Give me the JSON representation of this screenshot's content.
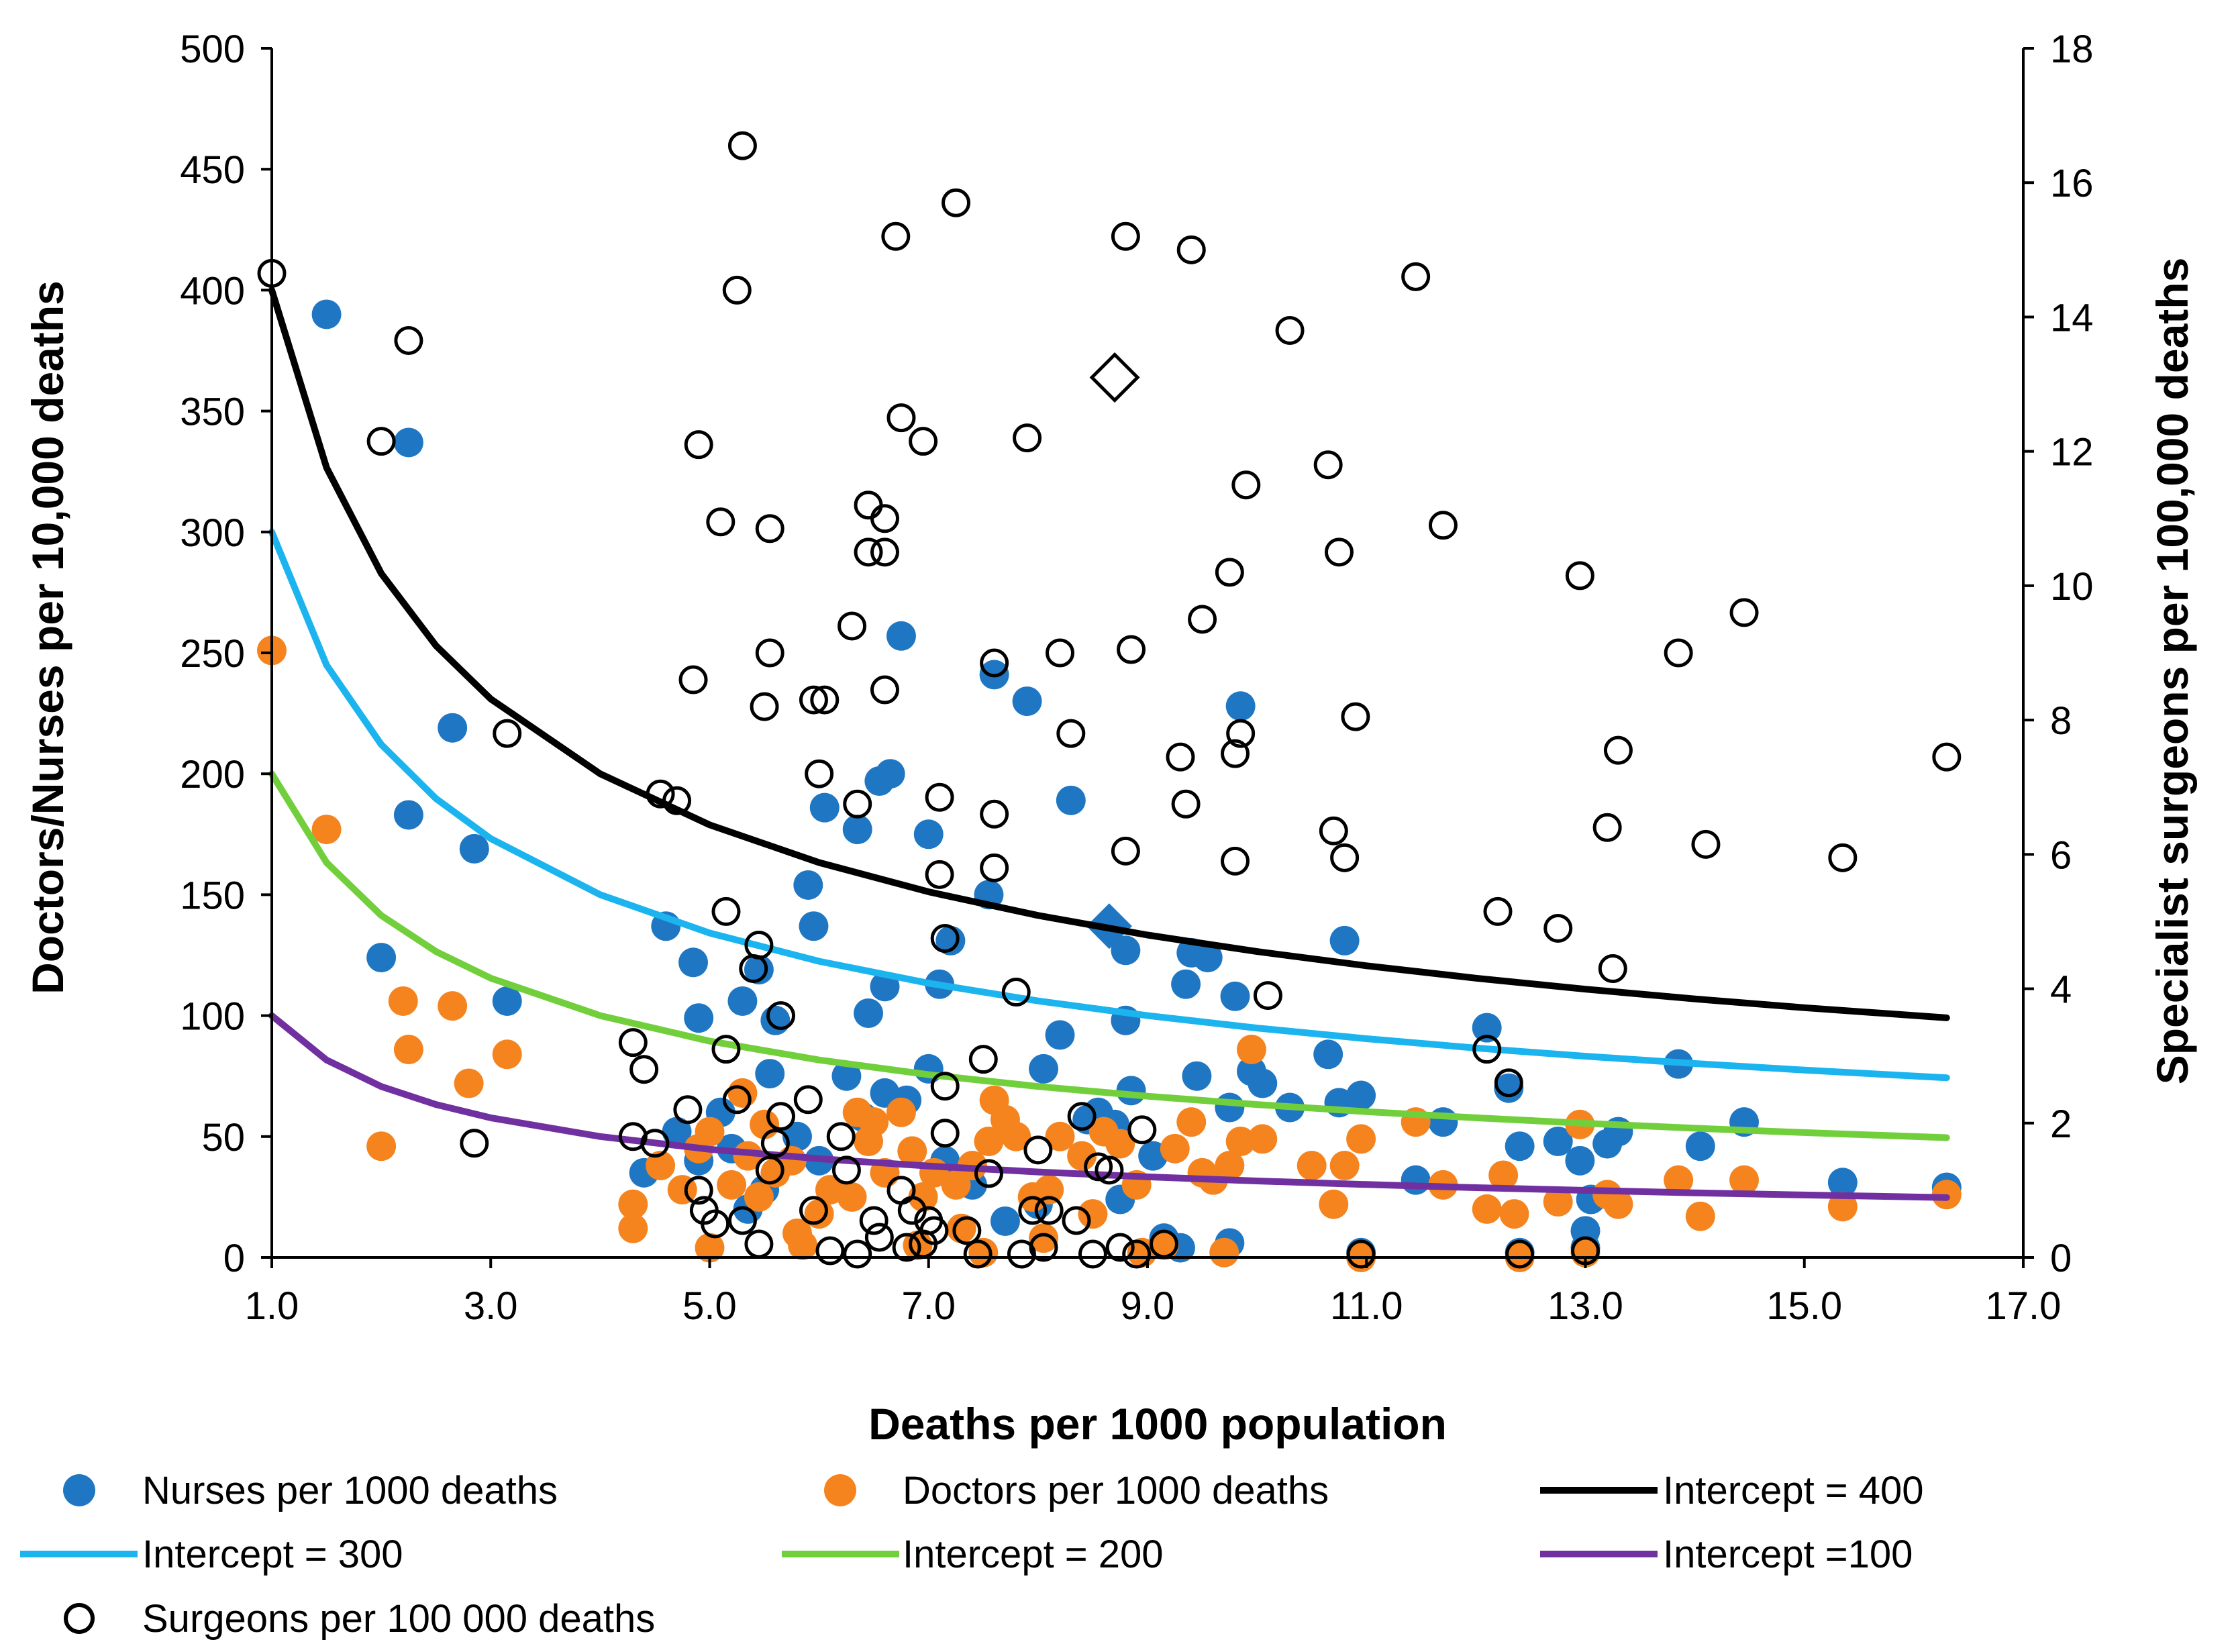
{
  "chart_data": {
    "type": "scatter",
    "xlabel": "Deaths per 1000 population",
    "ylabel": "Doctors/Nurses per 10,000 deaths",
    "y2label": "Specialist surgeons per 100,000 deaths",
    "xlim": [
      1.0,
      17.0
    ],
    "ylim": [
      0,
      500
    ],
    "y2lim": [
      0,
      18
    ],
    "x_ticks": [
      "1.0",
      "3.0",
      "5.0",
      "7.0",
      "9.0",
      "11.0",
      "13.0",
      "15.0",
      "17.0"
    ],
    "y_ticks": [
      "0",
      "50",
      "100",
      "150",
      "200",
      "250",
      "300",
      "350",
      "400",
      "450",
      "500"
    ],
    "y2_ticks": [
      "0",
      "2",
      "4",
      "6",
      "8",
      "10",
      "12",
      "14",
      "16",
      "18"
    ],
    "colors": {
      "nurses": "#1f77c4",
      "doctors": "#f5841f",
      "intercept400": "#000000",
      "intercept300": "#1cb4ee",
      "intercept200": "#72cf3c",
      "intercept100": "#7030a0"
    },
    "legend": {
      "nurses": "Nurses per 1000 deaths",
      "doctors": "Doctors per 1000 deaths",
      "i400": "Intercept = 400",
      "i300": "Intercept = 300",
      "i200": "Intercept = 200",
      "i100": "Intercept =100",
      "surgeons": "Surgeons per 100 000 deaths"
    },
    "curves": [
      {
        "name": "Intercept = 400",
        "intercept": 400,
        "color_key": "intercept400"
      },
      {
        "name": "Intercept = 300",
        "intercept": 300,
        "color_key": "intercept300"
      },
      {
        "name": "Intercept = 200",
        "intercept": 200,
        "color_key": "intercept200"
      },
      {
        "name": "Intercept =100",
        "intercept": 100,
        "color_key": "intercept100"
      }
    ],
    "curve_x": [
      1.0,
      1.5,
      2.0,
      2.5,
      3.0,
      4.0,
      5.0,
      6.0,
      7.0,
      8.0,
      9.0,
      10.0,
      11.0,
      12.0,
      13.0,
      14.0,
      15.0,
      16.3
    ],
    "highlight_nurse": {
      "x": 8.65,
      "y": 137
    },
    "highlight_surgeon": {
      "x": 8.7,
      "y2": 13.1
    },
    "nurses": [
      [
        1.5,
        390
      ],
      [
        2.25,
        337
      ],
      [
        2.25,
        183
      ],
      [
        2.65,
        219
      ],
      [
        2.85,
        169
      ],
      [
        2.0,
        124
      ],
      [
        3.15,
        106
      ],
      [
        4.6,
        137
      ],
      [
        4.85,
        122
      ],
      [
        4.9,
        99
      ],
      [
        5.3,
        106
      ],
      [
        5.45,
        119
      ],
      [
        5.55,
        76
      ],
      [
        5.6,
        98
      ],
      [
        5.9,
        154
      ],
      [
        5.95,
        137
      ],
      [
        6.05,
        186
      ],
      [
        6.35,
        177
      ],
      [
        6.45,
        101
      ],
      [
        6.6,
        112
      ],
      [
        6.65,
        200
      ],
      [
        6.55,
        197
      ],
      [
        6.75,
        257
      ],
      [
        7.0,
        175
      ],
      [
        7.1,
        113
      ],
      [
        7.2,
        131
      ],
      [
        7.55,
        150
      ],
      [
        7.6,
        241
      ],
      [
        7.9,
        230
      ],
      [
        8.05,
        78
      ],
      [
        8.2,
        92
      ],
      [
        8.3,
        189
      ],
      [
        8.8,
        98
      ],
      [
        8.8,
        127
      ],
      [
        8.85,
        69
      ],
      [
        9.35,
        113
      ],
      [
        9.4,
        126
      ],
      [
        9.45,
        75
      ],
      [
        9.55,
        124
      ],
      [
        9.75,
        62
      ],
      [
        9.8,
        108
      ],
      [
        9.85,
        228
      ],
      [
        9.95,
        77
      ],
      [
        10.05,
        72
      ],
      [
        10.3,
        62
      ],
      [
        10.65,
        84
      ],
      [
        10.75,
        64
      ],
      [
        10.8,
        131
      ],
      [
        10.95,
        67
      ],
      [
        11.7,
        56
      ],
      [
        11.45,
        32
      ],
      [
        12.1,
        95
      ],
      [
        12.3,
        70
      ],
      [
        12.4,
        46
      ],
      [
        12.75,
        48
      ],
      [
        12.95,
        40
      ],
      [
        13.0,
        11
      ],
      [
        13.05,
        24
      ],
      [
        13.2,
        47
      ],
      [
        13.3,
        52
      ],
      [
        13.85,
        80
      ],
      [
        14.05,
        46
      ],
      [
        14.45,
        56
      ],
      [
        15.35,
        31
      ],
      [
        16.3,
        29
      ],
      [
        4.4,
        35
      ],
      [
        4.7,
        52
      ],
      [
        4.9,
        40
      ],
      [
        5.1,
        60
      ],
      [
        5.2,
        45
      ],
      [
        5.35,
        20
      ],
      [
        5.5,
        28
      ],
      [
        5.8,
        50
      ],
      [
        6.0,
        40
      ],
      [
        6.25,
        75
      ],
      [
        6.4,
        58
      ],
      [
        6.6,
        68
      ],
      [
        6.8,
        65
      ],
      [
        7.0,
        78
      ],
      [
        7.15,
        40
      ],
      [
        7.4,
        30
      ],
      [
        7.7,
        15
      ],
      [
        8.0,
        22
      ],
      [
        8.45,
        57
      ],
      [
        8.55,
        60
      ],
      [
        8.7,
        55
      ],
      [
        8.75,
        24
      ],
      [
        9.05,
        42
      ],
      [
        9.15,
        8
      ],
      [
        9.3,
        4
      ],
      [
        9.75,
        6
      ],
      [
        10.95,
        2
      ],
      [
        12.4,
        2
      ],
      [
        13.0,
        4
      ]
    ],
    "doctors": [
      [
        1.0,
        251
      ],
      [
        1.5,
        177
      ],
      [
        2.2,
        106
      ],
      [
        2.25,
        86
      ],
      [
        2.65,
        104
      ],
      [
        2.8,
        72
      ],
      [
        2.0,
        46
      ],
      [
        3.15,
        84
      ],
      [
        4.3,
        22
      ],
      [
        4.3,
        12
      ],
      [
        4.55,
        38
      ],
      [
        4.75,
        28
      ],
      [
        4.9,
        45
      ],
      [
        5.0,
        4
      ],
      [
        5.2,
        30
      ],
      [
        5.3,
        68
      ],
      [
        5.35,
        42
      ],
      [
        5.45,
        25
      ],
      [
        5.5,
        55
      ],
      [
        5.6,
        35
      ],
      [
        5.75,
        40
      ],
      [
        5.85,
        5
      ],
      [
        6.0,
        18
      ],
      [
        6.1,
        28
      ],
      [
        6.3,
        25
      ],
      [
        6.45,
        48
      ],
      [
        6.5,
        56
      ],
      [
        6.6,
        35
      ],
      [
        6.75,
        60
      ],
      [
        6.85,
        44
      ],
      [
        6.95,
        25
      ],
      [
        7.05,
        35
      ],
      [
        7.25,
        30
      ],
      [
        7.4,
        38
      ],
      [
        7.55,
        48
      ],
      [
        7.6,
        65
      ],
      [
        7.7,
        57
      ],
      [
        7.8,
        50
      ],
      [
        7.95,
        25
      ],
      [
        8.05,
        8
      ],
      [
        8.2,
        50
      ],
      [
        8.4,
        42
      ],
      [
        8.6,
        52
      ],
      [
        8.75,
        47
      ],
      [
        8.9,
        30
      ],
      [
        9.25,
        45
      ],
      [
        9.4,
        56
      ],
      [
        9.5,
        35
      ],
      [
        9.6,
        32
      ],
      [
        9.75,
        38
      ],
      [
        9.85,
        48
      ],
      [
        9.95,
        86
      ],
      [
        10.05,
        49
      ],
      [
        10.5,
        38
      ],
      [
        10.7,
        22
      ],
      [
        10.8,
        38
      ],
      [
        10.95,
        49
      ],
      [
        11.45,
        56
      ],
      [
        11.7,
        30
      ],
      [
        12.1,
        20
      ],
      [
        12.25,
        34
      ],
      [
        12.35,
        18
      ],
      [
        12.75,
        23
      ],
      [
        12.95,
        55
      ],
      [
        13.2,
        26
      ],
      [
        13.3,
        22
      ],
      [
        13.85,
        32
      ],
      [
        14.05,
        17
      ],
      [
        14.45,
        32
      ],
      [
        15.35,
        21
      ],
      [
        16.3,
        26
      ],
      [
        5.0,
        52
      ],
      [
        5.8,
        10
      ],
      [
        6.35,
        60
      ],
      [
        6.9,
        5
      ],
      [
        7.3,
        12
      ],
      [
        8.1,
        28
      ],
      [
        8.5,
        18
      ],
      [
        9.15,
        5
      ],
      [
        9.7,
        2
      ],
      [
        10.95,
        0
      ],
      [
        12.4,
        0
      ],
      [
        13.0,
        2
      ],
      [
        7.5,
        2
      ],
      [
        8.95,
        2
      ]
    ],
    "surgeons": [
      [
        1.0,
        14.65
      ],
      [
        2.25,
        13.65
      ],
      [
        2.0,
        12.15
      ],
      [
        2.85,
        1.7
      ],
      [
        3.15,
        7.8
      ],
      [
        4.3,
        3.2
      ],
      [
        4.3,
        1.8
      ],
      [
        4.4,
        2.8
      ],
      [
        4.5,
        1.7
      ],
      [
        4.55,
        6.9
      ],
      [
        4.7,
        6.8
      ],
      [
        4.8,
        2.2
      ],
      [
        4.85,
        8.6
      ],
      [
        4.9,
        12.1
      ],
      [
        4.9,
        1.0
      ],
      [
        4.95,
        0.7
      ],
      [
        5.05,
        0.5
      ],
      [
        5.1,
        10.95
      ],
      [
        5.15,
        5.15
      ],
      [
        5.15,
        3.1
      ],
      [
        5.25,
        14.4
      ],
      [
        5.25,
        2.35
      ],
      [
        5.3,
        16.55
      ],
      [
        5.3,
        0.55
      ],
      [
        5.4,
        4.3
      ],
      [
        5.45,
        4.65
      ],
      [
        5.45,
        0.2
      ],
      [
        5.5,
        8.2
      ],
      [
        5.55,
        10.85
      ],
      [
        5.55,
        9.0
      ],
      [
        5.55,
        1.3
      ],
      [
        5.6,
        1.7
      ],
      [
        5.65,
        2.1
      ],
      [
        5.65,
        3.6
      ],
      [
        5.9,
        2.35
      ],
      [
        5.95,
        0.7
      ],
      [
        5.95,
        8.3
      ],
      [
        6.0,
        7.2
      ],
      [
        6.05,
        8.3
      ],
      [
        6.1,
        0.1
      ],
      [
        6.2,
        1.8
      ],
      [
        6.25,
        1.3
      ],
      [
        6.3,
        9.4
      ],
      [
        6.35,
        6.75
      ],
      [
        6.35,
        0.05
      ],
      [
        6.45,
        11.2
      ],
      [
        6.45,
        10.5
      ],
      [
        6.5,
        0.55
      ],
      [
        6.55,
        0.3
      ],
      [
        6.6,
        11.0
      ],
      [
        6.6,
        10.5
      ],
      [
        6.6,
        8.45
      ],
      [
        6.7,
        15.2
      ],
      [
        6.75,
        1.0
      ],
      [
        6.75,
        12.5
      ],
      [
        6.8,
        0.15
      ],
      [
        6.85,
        0.7
      ],
      [
        6.95,
        12.15
      ],
      [
        6.95,
        0.2
      ],
      [
        7.0,
        0.55
      ],
      [
        7.05,
        0.4
      ],
      [
        7.1,
        6.85
      ],
      [
        7.1,
        5.7
      ],
      [
        7.15,
        4.75
      ],
      [
        7.15,
        2.55
      ],
      [
        7.15,
        1.85
      ],
      [
        7.25,
        15.7
      ],
      [
        7.35,
        0.4
      ],
      [
        7.45,
        0.05
      ],
      [
        7.5,
        2.95
      ],
      [
        7.55,
        1.25
      ],
      [
        7.6,
        8.85
      ],
      [
        7.6,
        6.6
      ],
      [
        7.6,
        5.8
      ],
      [
        7.8,
        3.95
      ],
      [
        7.85,
        0.05
      ],
      [
        7.9,
        12.2
      ],
      [
        7.95,
        0.7
      ],
      [
        8.0,
        1.6
      ],
      [
        8.05,
        0.15
      ],
      [
        8.1,
        0.7
      ],
      [
        8.2,
        9.0
      ],
      [
        8.3,
        7.8
      ],
      [
        8.35,
        0.55
      ],
      [
        8.4,
        2.1
      ],
      [
        8.5,
        0.05
      ],
      [
        8.55,
        1.35
      ],
      [
        8.65,
        1.3
      ],
      [
        8.75,
        0.15
      ],
      [
        8.8,
        15.2
      ],
      [
        8.8,
        6.05
      ],
      [
        8.85,
        9.05
      ],
      [
        8.9,
        0.05
      ],
      [
        8.95,
        1.9
      ],
      [
        9.15,
        0.2
      ],
      [
        9.3,
        7.45
      ],
      [
        9.35,
        6.75
      ],
      [
        9.4,
        15.0
      ],
      [
        9.5,
        9.5
      ],
      [
        9.75,
        10.2
      ],
      [
        9.8,
        7.5
      ],
      [
        9.8,
        5.9
      ],
      [
        9.85,
        7.8
      ],
      [
        9.9,
        11.5
      ],
      [
        10.1,
        3.9
      ],
      [
        10.3,
        13.8
      ],
      [
        10.65,
        11.8
      ],
      [
        10.7,
        6.35
      ],
      [
        10.75,
        10.5
      ],
      [
        10.8,
        5.95
      ],
      [
        10.9,
        8.05
      ],
      [
        10.95,
        0.05
      ],
      [
        11.45,
        14.6
      ],
      [
        11.7,
        10.9
      ],
      [
        12.1,
        3.1
      ],
      [
        12.2,
        5.15
      ],
      [
        12.3,
        2.6
      ],
      [
        12.4,
        0.05
      ],
      [
        12.75,
        4.9
      ],
      [
        12.95,
        10.15
      ],
      [
        13.0,
        0.1
      ],
      [
        13.2,
        6.4
      ],
      [
        13.25,
        4.3
      ],
      [
        13.3,
        7.55
      ],
      [
        13.85,
        9.0
      ],
      [
        14.1,
        6.15
      ],
      [
        14.45,
        9.6
      ],
      [
        15.35,
        5.95
      ],
      [
        16.3,
        7.45
      ]
    ]
  }
}
